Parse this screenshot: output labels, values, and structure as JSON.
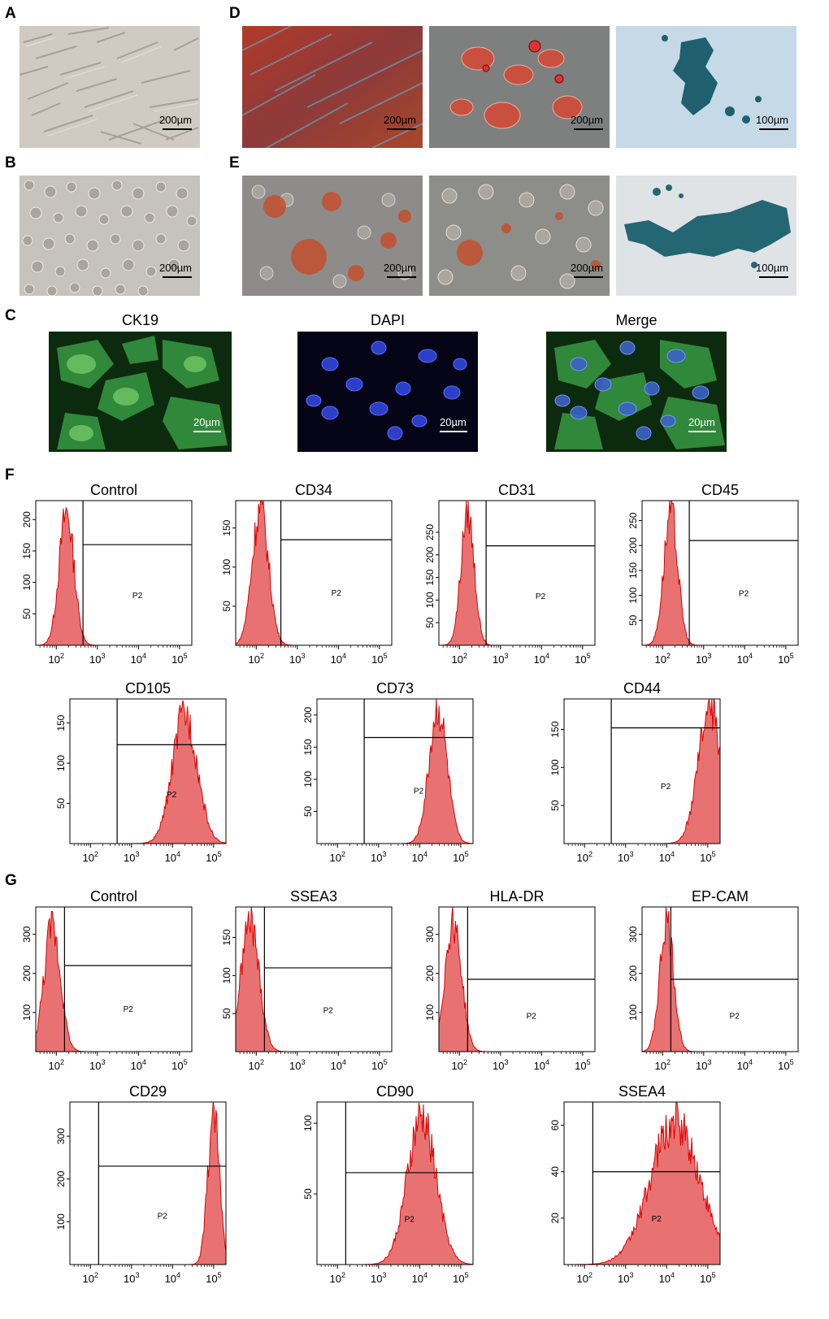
{
  "panels": {
    "A": {
      "letter": "A",
      "scale": "200µm"
    },
    "B": {
      "letter": "B",
      "scale": "200µm"
    },
    "C": {
      "letter": "C",
      "images": [
        {
          "title": "CK19",
          "scale": "20µm"
        },
        {
          "title": "DAPI",
          "scale": "20µm"
        },
        {
          "title": "Merge",
          "scale": "20µm"
        }
      ]
    },
    "D": {
      "letter": "D",
      "scales": [
        "200µm",
        "200µm",
        "100µm"
      ]
    },
    "E": {
      "letter": "E",
      "scales": [
        "200µm",
        "200µm",
        "100µm"
      ]
    },
    "F": {
      "letter": "F"
    },
    "G": {
      "letter": "G"
    }
  },
  "colors": {
    "histogram_fill": "#e87272",
    "histogram_line": "#e00000",
    "dapi_blue": "#2a3fd0",
    "ck19_green": "#39b54a"
  },
  "chart_data": [
    {
      "type": "area",
      "panel": "F",
      "title": "Control",
      "gate": "P2",
      "yticks": [
        50,
        100,
        150,
        200
      ],
      "xticks": [
        "10^2",
        "10^3",
        "10^4",
        "10^5"
      ],
      "ylim": [
        0,
        230
      ],
      "peak_log": 2.25,
      "width": 0.18,
      "peak": 215,
      "gate_start_log": 2.65,
      "gate_level": 160
    },
    {
      "type": "area",
      "panel": "F",
      "title": "CD34",
      "gate": "P2",
      "yticks": [
        50,
        100,
        150
      ],
      "xticks": [
        "10^2",
        "10^3",
        "10^4",
        "10^5"
      ],
      "ylim": [
        0,
        185
      ],
      "peak_log": 2.1,
      "width": 0.2,
      "peak": 178,
      "gate_start_log": 2.6,
      "gate_level": 135
    },
    {
      "type": "area",
      "panel": "F",
      "title": "CD31",
      "gate": "P2",
      "yticks": [
        50,
        100,
        150,
        200,
        250
      ],
      "xticks": [
        "10^2",
        "10^3",
        "10^4",
        "10^5"
      ],
      "ylim": [
        0,
        320
      ],
      "peak_log": 2.2,
      "width": 0.16,
      "peak": 300,
      "gate_start_log": 2.65,
      "gate_level": 220
    },
    {
      "type": "area",
      "panel": "F",
      "title": "CD45",
      "gate": "P2",
      "yticks": [
        50,
        100,
        150,
        200,
        250
      ],
      "xticks": [
        "10^2",
        "10^3",
        "10^4",
        "10^5"
      ],
      "ylim": [
        0,
        290
      ],
      "peak_log": 2.2,
      "width": 0.17,
      "peak": 270,
      "gate_start_log": 2.65,
      "gate_level": 210
    },
    {
      "type": "area",
      "panel": "F",
      "title": "CD105",
      "gate": "P2",
      "yticks": [
        50,
        100,
        150
      ],
      "xticks": [
        "10^2",
        "10^3",
        "10^4",
        "10^5"
      ],
      "ylim": [
        0,
        180
      ],
      "peak_log": 4.3,
      "width": 0.3,
      "peak": 165,
      "gate_start_log": 2.65,
      "gate_level": 123
    },
    {
      "type": "area",
      "panel": "F",
      "title": "CD73",
      "gate": "P2",
      "yticks": [
        50,
        100,
        150,
        200
      ],
      "xticks": [
        "10^2",
        "10^3",
        "10^4",
        "10^5"
      ],
      "ylim": [
        0,
        225
      ],
      "peak_log": 4.45,
      "width": 0.22,
      "peak": 215,
      "gate_start_log": 2.65,
      "gate_level": 165
    },
    {
      "type": "area",
      "panel": "F",
      "title": "CD44",
      "gate": "P2",
      "yticks": [
        50,
        100,
        150
      ],
      "xticks": [
        "10^2",
        "10^3",
        "10^4",
        "10^5"
      ],
      "ylim": [
        0,
        190
      ],
      "peak_log": 5.05,
      "width": 0.28,
      "peak": 182,
      "gate_start_log": 2.65,
      "gate_level": 152
    },
    {
      "type": "area",
      "panel": "G",
      "title": "Control",
      "gate": "P2",
      "yticks": [
        100,
        200,
        300
      ],
      "xticks": [
        "10^2",
        "10^3",
        "10^4",
        "10^5"
      ],
      "ylim": [
        0,
        370
      ],
      "peak_log": 1.9,
      "width": 0.2,
      "peak": 330,
      "gate_start_log": 2.2,
      "gate_level": 220
    },
    {
      "type": "area",
      "panel": "G",
      "title": "SSEA3",
      "gate": "P2",
      "yticks": [
        50,
        100,
        150
      ],
      "xticks": [
        "10^2",
        "10^3",
        "10^4",
        "10^5"
      ],
      "ylim": [
        0,
        190
      ],
      "peak_log": 1.85,
      "width": 0.22,
      "peak": 175,
      "gate_start_log": 2.2,
      "gate_level": 110
    },
    {
      "type": "area",
      "panel": "G",
      "title": "HLA-DR",
      "gate": "P2",
      "yticks": [
        100,
        200,
        300
      ],
      "xticks": [
        "10^2",
        "10^3",
        "10^4",
        "10^5"
      ],
      "ylim": [
        0,
        370
      ],
      "peak_log": 1.85,
      "width": 0.2,
      "peak": 340,
      "gate_start_log": 2.2,
      "gate_level": 185
    },
    {
      "type": "area",
      "panel": "G",
      "title": "EP-CAM",
      "gate": "P2",
      "yticks": [
        100,
        200,
        300
      ],
      "xticks": [
        "10^2",
        "10^3",
        "10^4",
        "10^5"
      ],
      "ylim": [
        0,
        370
      ],
      "peak_log": 2.1,
      "width": 0.17,
      "peak": 340,
      "gate_start_log": 2.2,
      "gate_level": 185
    },
    {
      "type": "area",
      "panel": "G",
      "title": "CD29",
      "gate": "P2",
      "yticks": [
        100,
        200,
        300
      ],
      "xticks": [
        "10^2",
        "10^3",
        "10^4",
        "10^5"
      ],
      "ylim": [
        0,
        380
      ],
      "peak_log": 5.0,
      "width": 0.14,
      "peak": 360,
      "gate_start_log": 2.2,
      "gate_level": 230
    },
    {
      "type": "area",
      "panel": "G",
      "title": "CD90",
      "gate": "P2",
      "yticks": [
        50,
        100
      ],
      "xticks": [
        "10^2",
        "10^3",
        "10^4",
        "10^5"
      ],
      "ylim": [
        0,
        115
      ],
      "peak_log": 4.05,
      "width": 0.35,
      "peak": 105,
      "gate_start_log": 2.2,
      "gate_level": 65
    },
    {
      "type": "area",
      "panel": "G",
      "title": "SSEA4",
      "gate": "P2",
      "yticks": [
        20,
        40,
        60
      ],
      "xticks": [
        "10^2",
        "10^3",
        "10^4",
        "10^5"
      ],
      "ylim": [
        0,
        70
      ],
      "peak_log": 4.2,
      "width": 0.6,
      "peak": 62,
      "gate_start_log": 2.2,
      "gate_level": 40
    }
  ]
}
